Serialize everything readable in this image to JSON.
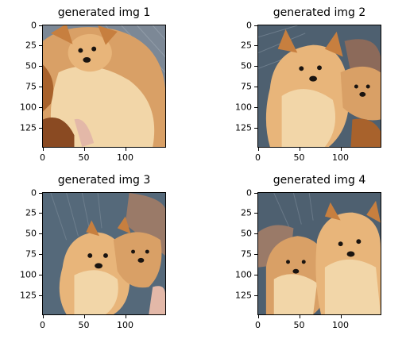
{
  "panels": [
    {
      "title": "generated img 1",
      "yticks": [
        "0",
        "25",
        "50",
        "75",
        "100",
        "125"
      ],
      "xticks": [
        "0",
        "50",
        "100"
      ]
    },
    {
      "title": "generated img 2",
      "yticks": [
        "0",
        "25",
        "50",
        "75",
        "100",
        "125"
      ],
      "xticks": [
        "0",
        "50",
        "100"
      ]
    },
    {
      "title": "generated img 3",
      "yticks": [
        "0",
        "25",
        "50",
        "75",
        "100",
        "125"
      ],
      "xticks": [
        "0",
        "50",
        "100"
      ]
    },
    {
      "title": "generated img 4",
      "yticks": [
        "0",
        "25",
        "50",
        "75",
        "100",
        "125"
      ],
      "xticks": [
        "0",
        "50",
        "100"
      ]
    }
  ],
  "colors": {
    "background_slate": "#4e6070",
    "fur_light": "#f2d6a8",
    "fur_mid": "#d9a066",
    "fur_dark": "#a8622c",
    "eye_nose": "#1a1410"
  }
}
